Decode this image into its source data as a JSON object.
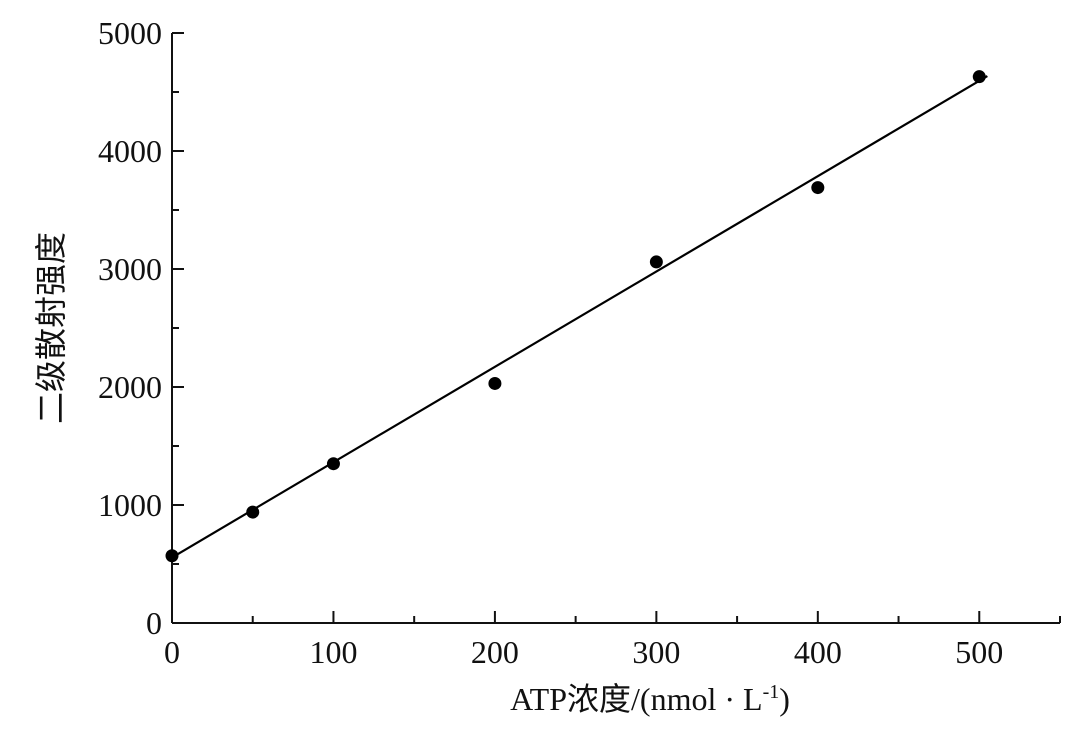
{
  "chart_data": {
    "type": "scatter",
    "title": "",
    "xlabel": "ATP浓度/(nmol · L",
    "xlabel_sup": "-1",
    "xlabel_end": ")",
    "ylabel": "二级散射强度",
    "xlim": [
      0,
      550
    ],
    "ylim": [
      0,
      5000
    ],
    "x_ticks": [
      0,
      100,
      200,
      300,
      400,
      500
    ],
    "y_ticks": [
      0,
      1000,
      2000,
      3000,
      4000,
      5000
    ],
    "x_tick_labels": [
      "0",
      "100",
      "200",
      "300",
      "400",
      "500"
    ],
    "y_tick_labels": [
      "0",
      "1000",
      "2000",
      "3000",
      "4000",
      "5000"
    ],
    "grid": false,
    "series": [
      {
        "points": [
          {
            "x": 0,
            "y": 570
          },
          {
            "x": 50,
            "y": 940
          },
          {
            "x": 100,
            "y": 1350
          },
          {
            "x": 200,
            "y": 2030
          },
          {
            "x": 300,
            "y": 3060
          },
          {
            "x": 400,
            "y": 3690
          },
          {
            "x": 500,
            "y": 4630
          }
        ],
        "marker_color": "#000000"
      }
    ],
    "fit_line": {
      "x": [
        0,
        505
      ],
      "y": [
        555,
        4635
      ],
      "color": "#000000"
    }
  }
}
